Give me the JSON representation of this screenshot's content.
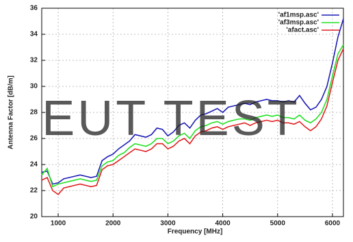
{
  "chart_data": {
    "type": "line",
    "xlabel": "Frequency [MHz]",
    "ylabel": "Antenna Factor [dB/m]",
    "watermark": "EUT TEST",
    "x": [
      700,
      800,
      900,
      1000,
      1100,
      1200,
      1300,
      1400,
      1500,
      1600,
      1700,
      1800,
      1900,
      2000,
      2100,
      2200,
      2300,
      2400,
      2500,
      2600,
      2700,
      2800,
      2900,
      3000,
      3100,
      3200,
      3300,
      3400,
      3500,
      3600,
      3700,
      3800,
      3900,
      4000,
      4100,
      4200,
      4300,
      4400,
      4500,
      4600,
      4700,
      4800,
      4900,
      5000,
      5100,
      5200,
      5300,
      5400,
      5500,
      5600,
      5700,
      5800,
      5900,
      6000,
      6100,
      6200
    ],
    "series": [
      {
        "name": "'af1msp.asc'",
        "color": "#1c1cb4",
        "values": [
          23.4,
          23.5,
          22.5,
          22.6,
          22.9,
          23.0,
          23.1,
          23.2,
          23.1,
          23.0,
          23.1,
          24.3,
          24.6,
          24.8,
          25.2,
          25.5,
          25.8,
          26.3,
          26.2,
          26.1,
          26.3,
          26.8,
          26.7,
          26.2,
          26.5,
          27.0,
          27.2,
          26.8,
          27.4,
          27.8,
          27.9,
          28.1,
          28.3,
          28.0,
          28.4,
          28.5,
          28.6,
          28.7,
          28.6,
          28.8,
          28.9,
          29.0,
          28.9,
          28.9,
          28.8,
          28.9,
          28.8,
          29.3,
          28.7,
          28.2,
          28.4,
          29.0,
          30.0,
          31.8,
          33.8,
          35.2
        ]
      },
      {
        "name": "'af3msp.asc'",
        "color": "#22e022",
        "values": [
          23.2,
          23.7,
          22.3,
          22.5,
          22.6,
          22.7,
          22.8,
          22.9,
          22.8,
          22.7,
          22.8,
          23.9,
          24.2,
          24.3,
          24.7,
          24.9,
          25.3,
          25.6,
          25.5,
          25.4,
          25.6,
          26.0,
          26.0,
          25.6,
          25.8,
          26.2,
          26.4,
          26.0,
          26.6,
          26.9,
          27.0,
          27.2,
          27.3,
          27.1,
          27.3,
          27.4,
          27.5,
          27.5,
          27.4,
          27.6,
          27.7,
          27.8,
          27.7,
          27.8,
          27.6,
          27.6,
          27.5,
          27.8,
          27.4,
          27.2,
          27.5,
          28.0,
          29.0,
          30.8,
          32.5,
          33.2
        ]
      },
      {
        "name": "'afact.asc'",
        "color": "#e02020",
        "values": [
          22.8,
          23.0,
          22.0,
          21.7,
          22.2,
          22.3,
          22.4,
          22.5,
          22.4,
          22.3,
          22.4,
          23.6,
          23.9,
          24.0,
          24.3,
          24.6,
          24.9,
          25.2,
          25.1,
          25.0,
          25.2,
          25.6,
          25.6,
          25.2,
          25.4,
          25.8,
          26.0,
          25.6,
          26.2,
          26.5,
          26.6,
          26.8,
          26.9,
          26.7,
          26.9,
          27.0,
          27.1,
          27.2,
          27.0,
          27.2,
          27.3,
          27.4,
          27.3,
          27.4,
          27.2,
          27.2,
          27.1,
          27.3,
          26.9,
          26.6,
          26.9,
          27.5,
          28.5,
          30.3,
          32.0,
          32.9
        ]
      }
    ],
    "xlim": [
      700,
      6200
    ],
    "ylim": [
      20,
      36
    ],
    "xticks": [
      1000,
      2000,
      3000,
      4000,
      5000,
      6000
    ],
    "yticks": [
      20,
      22,
      24,
      26,
      28,
      30,
      32,
      34,
      36
    ],
    "grid": true,
    "legend": "top-right"
  }
}
